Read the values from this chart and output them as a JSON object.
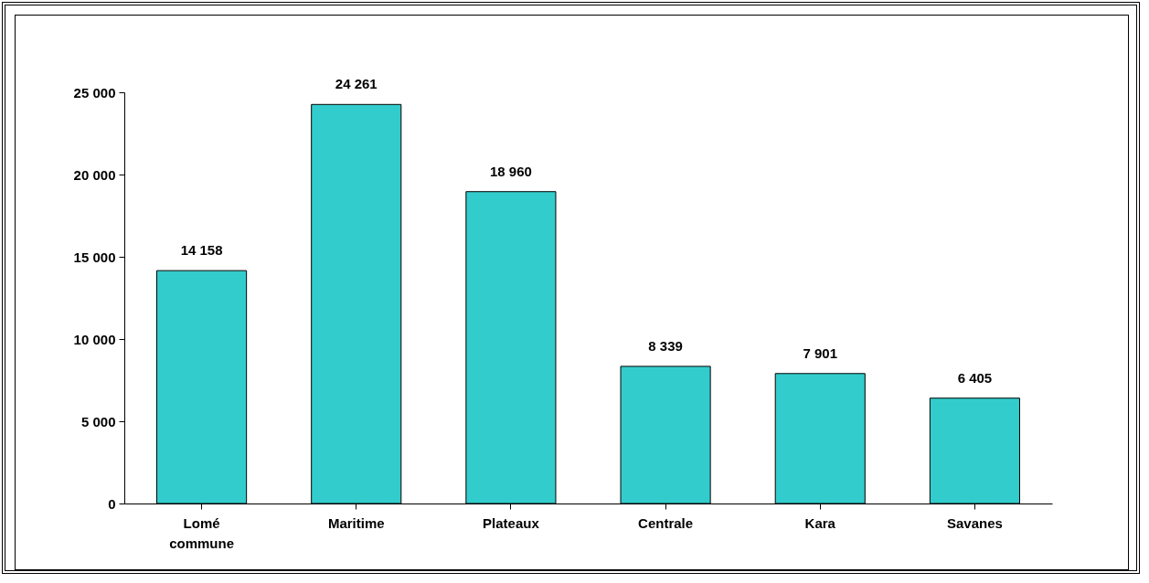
{
  "chart_data": {
    "type": "bar",
    "categories": [
      "Lomé commune",
      "Maritime",
      "Plateaux",
      "Centrale",
      "Kara",
      "Savanes"
    ],
    "values": [
      14158,
      24261,
      18960,
      8339,
      7901,
      6405
    ],
    "value_labels": [
      "14 158",
      "24 261",
      "18 960",
      "8 339",
      "7 901",
      "6 405"
    ],
    "color": "#33cccc",
    "ylim": [
      0,
      25000
    ],
    "yticks": [
      {
        "value": 0,
        "label": "0"
      },
      {
        "value": 5000,
        "label": "5 000"
      },
      {
        "value": 10000,
        "label": "10 000"
      },
      {
        "value": 15000,
        "label": "15 000"
      },
      {
        "value": 20000,
        "label": "20 000"
      },
      {
        "value": 25000,
        "label": "25 000"
      }
    ]
  }
}
